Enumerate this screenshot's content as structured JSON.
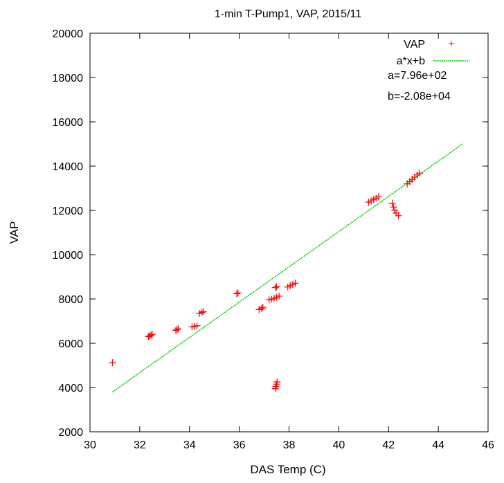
{
  "chart_data": {
    "type": "scatter",
    "title": "1-min T-Pump1, VAP, 2015/11",
    "xlabel": "DAS Temp (C)",
    "ylabel": "VAP",
    "xlim": [
      30,
      46
    ],
    "ylim": [
      2000,
      20000
    ],
    "xticks": [
      30,
      32,
      34,
      36,
      38,
      40,
      42,
      44,
      46
    ],
    "yticks": [
      2000,
      4000,
      6000,
      8000,
      10000,
      12000,
      14000,
      16000,
      18000,
      20000
    ],
    "grid": false,
    "legend_position": "top-right",
    "series": [
      {
        "name": "VAP",
        "marker": "plus",
        "color": "#ff0000",
        "points": [
          [
            30.9,
            5120
          ],
          [
            32.35,
            6300
          ],
          [
            32.4,
            6330
          ],
          [
            32.45,
            6370
          ],
          [
            32.5,
            6400
          ],
          [
            33.45,
            6580
          ],
          [
            33.5,
            6620
          ],
          [
            33.55,
            6650
          ],
          [
            34.1,
            6740
          ],
          [
            34.2,
            6760
          ],
          [
            34.3,
            6790
          ],
          [
            34.4,
            7340
          ],
          [
            34.5,
            7390
          ],
          [
            34.55,
            7430
          ],
          [
            35.9,
            8240
          ],
          [
            35.95,
            8270
          ],
          [
            36.8,
            7520
          ],
          [
            36.9,
            7570
          ],
          [
            36.95,
            7620
          ],
          [
            37.2,
            7960
          ],
          [
            37.3,
            7990
          ],
          [
            37.4,
            8030
          ],
          [
            37.5,
            8080
          ],
          [
            37.6,
            8130
          ],
          [
            37.45,
            8510
          ],
          [
            37.5,
            8550
          ],
          [
            37.45,
            3950
          ],
          [
            37.47,
            4050
          ],
          [
            37.5,
            4150
          ],
          [
            37.52,
            4250
          ],
          [
            37.95,
            8540
          ],
          [
            38.05,
            8600
          ],
          [
            38.15,
            8660
          ],
          [
            38.25,
            8710
          ],
          [
            41.2,
            12370
          ],
          [
            41.3,
            12430
          ],
          [
            41.4,
            12490
          ],
          [
            41.5,
            12550
          ],
          [
            41.6,
            12620
          ],
          [
            42.15,
            12320
          ],
          [
            42.2,
            12150
          ],
          [
            42.25,
            12000
          ],
          [
            42.3,
            11880
          ],
          [
            42.4,
            11760
          ],
          [
            42.75,
            13200
          ],
          [
            42.85,
            13300
          ],
          [
            42.95,
            13400
          ],
          [
            43.05,
            13500
          ],
          [
            43.15,
            13600
          ],
          [
            43.25,
            13680
          ]
        ]
      },
      {
        "name": "a*x+b",
        "marker": "line",
        "color": "#00cc00",
        "fit": {
          "a": 796,
          "b": -20800,
          "x_range": [
            30.9,
            45
          ]
        }
      }
    ],
    "annotations": [
      {
        "text": "a=7.96e+02"
      },
      {
        "text": "b=-2.08e+04"
      }
    ]
  }
}
